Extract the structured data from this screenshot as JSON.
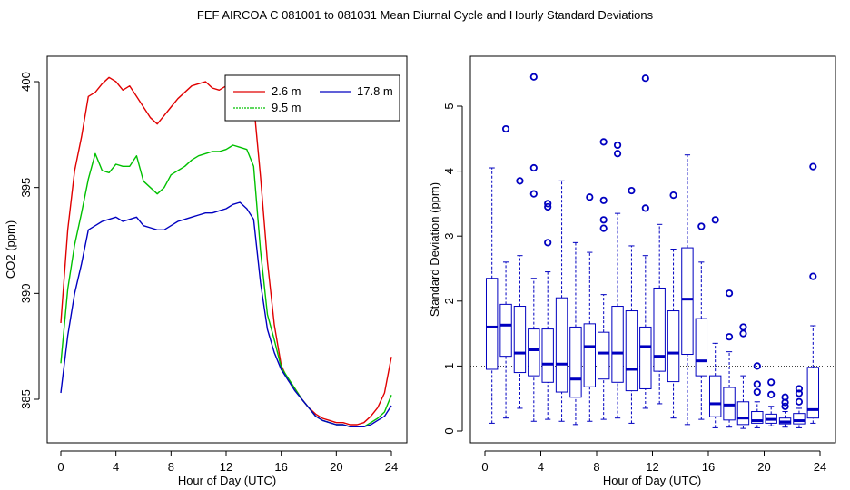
{
  "title": "FEF   AIRCOA C   081001 to 081031   Mean Diurnal Cycle and Hourly Standard Deviations",
  "chart_data": [
    {
      "type": "line",
      "xlabel": "Hour of Day (UTC)",
      "ylabel": "CO2 (ppm)",
      "xlim": [
        0,
        24
      ],
      "ylim": [
        383,
        400.5
      ],
      "xticks": [
        0,
        4,
        8,
        12,
        16,
        20,
        24
      ],
      "yticks": [
        385,
        390,
        395,
        400
      ],
      "legend_position": "top-right",
      "x": [
        0,
        0.5,
        1,
        1.5,
        2,
        2.5,
        3,
        3.5,
        4,
        4.5,
        5,
        5.5,
        6,
        6.5,
        7,
        7.5,
        8,
        8.5,
        9,
        9.5,
        10,
        10.5,
        11,
        11.5,
        12,
        12.5,
        13,
        13.5,
        14,
        14.5,
        15,
        15.5,
        16,
        16.5,
        17,
        17.5,
        18,
        18.5,
        19,
        19.5,
        20,
        20.5,
        21,
        21.5,
        22,
        22.5,
        23,
        23.5,
        24
      ],
      "series": [
        {
          "name": "2.6 m",
          "color": "#e00000",
          "values": [
            388.6,
            393.0,
            395.8,
            397.4,
            399.3,
            399.5,
            399.9,
            400.2,
            400.0,
            399.6,
            399.8,
            399.3,
            398.8,
            398.3,
            398.0,
            398.4,
            398.8,
            399.2,
            399.5,
            399.8,
            399.9,
            400.0,
            399.7,
            399.6,
            399.8,
            399.9,
            399.8,
            399.6,
            399.0,
            395.5,
            391.5,
            388.5,
            386.6,
            385.9,
            385.5,
            385.0,
            384.6,
            384.3,
            384.1,
            384.0,
            383.9,
            383.9,
            383.8,
            383.8,
            383.9,
            384.2,
            384.6,
            385.3,
            387.0
          ]
        },
        {
          "name": "9.5 m",
          "color": "#00c000",
          "values": [
            386.7,
            390.2,
            392.3,
            393.8,
            395.4,
            396.6,
            395.8,
            395.7,
            396.1,
            396.0,
            396.0,
            396.5,
            395.3,
            395.0,
            394.7,
            395.0,
            395.6,
            395.8,
            396.0,
            396.3,
            396.5,
            396.6,
            396.7,
            396.7,
            396.8,
            397.0,
            396.9,
            396.8,
            396.0,
            392.0,
            389.0,
            387.8,
            386.5,
            386.0,
            385.5,
            385.0,
            384.6,
            384.2,
            384.0,
            383.9,
            383.8,
            383.8,
            383.7,
            383.7,
            383.7,
            383.9,
            384.1,
            384.4,
            385.2
          ]
        },
        {
          "name": "17.8 m",
          "color": "#0000c0",
          "values": [
            385.3,
            388.0,
            390.0,
            391.4,
            393.0,
            393.2,
            393.4,
            393.5,
            393.6,
            393.4,
            393.5,
            393.6,
            393.2,
            393.1,
            393.0,
            393.0,
            393.2,
            393.4,
            393.5,
            393.6,
            393.7,
            393.8,
            393.8,
            393.9,
            394.0,
            394.2,
            394.3,
            394.0,
            393.5,
            390.5,
            388.3,
            387.2,
            386.4,
            385.9,
            385.4,
            385.0,
            384.6,
            384.2,
            384.0,
            383.9,
            383.8,
            383.8,
            383.7,
            383.7,
            383.7,
            383.8,
            384.0,
            384.2,
            384.7
          ]
        }
      ]
    },
    {
      "type": "box",
      "xlabel": "Hour of Day (UTC)",
      "ylabel": "Standard Deviation (ppm)",
      "xlim": [
        -0.5,
        25
      ],
      "ylim": [
        -0.15,
        5.6
      ],
      "xticks": [
        0,
        4,
        8,
        12,
        16,
        20,
        24
      ],
      "yticks": [
        0,
        1,
        2,
        3,
        4,
        5
      ],
      "reference_line": 1,
      "color": "#0000c0",
      "boxes": [
        {
          "hour": 0.5,
          "lo": 0.12,
          "q1": 0.95,
          "med": 1.6,
          "q3": 2.35,
          "hi": 4.05,
          "out": []
        },
        {
          "hour": 1.5,
          "lo": 0.2,
          "q1": 1.15,
          "med": 1.63,
          "q3": 1.95,
          "hi": 2.6,
          "out": [
            4.65
          ]
        },
        {
          "hour": 2.5,
          "lo": 0.35,
          "q1": 0.9,
          "med": 1.2,
          "q3": 1.92,
          "hi": 2.7,
          "out": [
            3.85
          ]
        },
        {
          "hour": 3.5,
          "lo": 0.15,
          "q1": 0.85,
          "med": 1.25,
          "q3": 1.57,
          "hi": 2.35,
          "out": [
            5.45,
            4.05,
            3.65
          ]
        },
        {
          "hour": 4.5,
          "lo": 0.18,
          "q1": 0.75,
          "med": 1.03,
          "q3": 1.57,
          "hi": 2.45,
          "out": [
            3.5,
            3.45,
            2.9
          ]
        },
        {
          "hour": 5.5,
          "lo": 0.15,
          "q1": 0.6,
          "med": 1.03,
          "q3": 2.05,
          "hi": 3.85,
          "out": []
        },
        {
          "hour": 6.5,
          "lo": 0.1,
          "q1": 0.52,
          "med": 0.8,
          "q3": 1.6,
          "hi": 2.9,
          "out": []
        },
        {
          "hour": 7.5,
          "lo": 0.15,
          "q1": 0.68,
          "med": 1.3,
          "q3": 1.65,
          "hi": 2.75,
          "out": [
            3.6
          ]
        },
        {
          "hour": 8.5,
          "lo": 0.18,
          "q1": 0.8,
          "med": 1.2,
          "q3": 1.52,
          "hi": 2.1,
          "out": [
            4.45,
            3.55,
            3.25,
            3.12
          ]
        },
        {
          "hour": 9.5,
          "lo": 0.2,
          "q1": 0.75,
          "med": 1.2,
          "q3": 1.92,
          "hi": 3.35,
          "out": [
            4.4,
            4.27
          ]
        },
        {
          "hour": 10.5,
          "lo": 0.12,
          "q1": 0.62,
          "med": 0.95,
          "q3": 1.85,
          "hi": 2.85,
          "out": [
            3.7
          ]
        },
        {
          "hour": 11.5,
          "lo": 0.35,
          "q1": 0.65,
          "med": 1.3,
          "q3": 1.6,
          "hi": 2.7,
          "out": [
            5.43,
            3.43
          ]
        },
        {
          "hour": 12.5,
          "lo": 0.42,
          "q1": 0.92,
          "med": 1.15,
          "q3": 2.2,
          "hi": 3.18,
          "out": []
        },
        {
          "hour": 13.5,
          "lo": 0.2,
          "q1": 0.76,
          "med": 1.2,
          "q3": 1.85,
          "hi": 2.8,
          "out": [
            3.63
          ]
        },
        {
          "hour": 14.5,
          "lo": 0.1,
          "q1": 1.18,
          "med": 2.03,
          "q3": 2.82,
          "hi": 4.25,
          "out": []
        },
        {
          "hour": 15.5,
          "lo": 0.18,
          "q1": 0.85,
          "med": 1.08,
          "q3": 1.73,
          "hi": 2.6,
          "out": [
            3.15
          ]
        },
        {
          "hour": 16.5,
          "lo": 0.05,
          "q1": 0.22,
          "med": 0.42,
          "q3": 0.85,
          "hi": 1.35,
          "out": [
            3.25
          ]
        },
        {
          "hour": 17.5,
          "lo": 0.06,
          "q1": 0.17,
          "med": 0.4,
          "q3": 0.67,
          "hi": 1.22,
          "out": [
            2.12,
            1.45
          ]
        },
        {
          "hour": 18.5,
          "lo": 0.04,
          "q1": 0.1,
          "med": 0.2,
          "q3": 0.45,
          "hi": 0.85,
          "out": [
            1.6,
            1.5
          ]
        },
        {
          "hour": 19.5,
          "lo": 0.05,
          "q1": 0.12,
          "med": 0.16,
          "q3": 0.3,
          "hi": 0.45,
          "out": [
            1.0,
            0.72,
            0.6
          ]
        },
        {
          "hour": 20.5,
          "lo": 0.08,
          "q1": 0.12,
          "med": 0.18,
          "q3": 0.26,
          "hi": 0.38,
          "out": [
            0.75,
            0.56
          ]
        },
        {
          "hour": 21.5,
          "lo": 0.06,
          "q1": 0.11,
          "med": 0.14,
          "q3": 0.2,
          "hi": 0.3,
          "out": [
            0.52,
            0.44,
            0.38
          ]
        },
        {
          "hour": 22.5,
          "lo": 0.05,
          "q1": 0.11,
          "med": 0.16,
          "q3": 0.27,
          "hi": 0.35,
          "out": [
            0.65,
            0.58,
            0.45
          ]
        },
        {
          "hour": 23.5,
          "lo": 0.12,
          "q1": 0.2,
          "med": 0.33,
          "q3": 0.98,
          "hi": 1.62,
          "out": [
            4.07,
            2.38
          ]
        }
      ]
    }
  ]
}
